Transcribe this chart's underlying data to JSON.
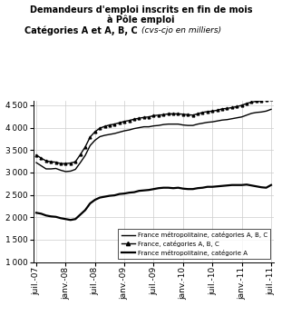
{
  "title_line1": "Demandeurs d'emploi inscrits en fin de mois",
  "title_line2": "à Pôle emploi",
  "title_line3_bold": "Catégories A et A, B, C",
  "title_line3_italic": "(cvs-cjo en milliers)",
  "x_labels": [
    "juil.-07",
    "janv.-08",
    "juil.-08",
    "janv.-09",
    "juil.-09",
    "janv.-10",
    "juil.-10",
    "janv.-11",
    "juil.-11"
  ],
  "xtick_positions": [
    0,
    6,
    12,
    18,
    24,
    30,
    36,
    42,
    48
  ],
  "ylim": [
    1000,
    4600
  ],
  "yticks": [
    1000,
    1500,
    2000,
    2500,
    3000,
    3500,
    4000,
    4500
  ],
  "series": {
    "france_metro_ABC": {
      "label": "France métropolitaine, catégories A, B, C",
      "color": "#000000",
      "linewidth": 1.0,
      "marker": null,
      "markersize": null,
      "values": [
        3220,
        3150,
        3080,
        3080,
        3090,
        3050,
        3020,
        3030,
        3070,
        3220,
        3380,
        3600,
        3720,
        3800,
        3830,
        3850,
        3870,
        3900,
        3930,
        3950,
        3980,
        4000,
        4020,
        4020,
        4040,
        4050,
        4070,
        4080,
        4080,
        4080,
        4060,
        4050,
        4050,
        4080,
        4100,
        4120,
        4130,
        4150,
        4170,
        4180,
        4200,
        4220,
        4240,
        4280,
        4320,
        4340,
        4350,
        4370,
        4410
      ]
    },
    "france_ABC": {
      "label": "France, catégories A, B, C",
      "color": "#000000",
      "linewidth": 1.0,
      "marker": "^",
      "markersize": 2.0,
      "values": [
        3390,
        3320,
        3260,
        3240,
        3230,
        3200,
        3200,
        3210,
        3240,
        3400,
        3570,
        3790,
        3910,
        3990,
        4030,
        4060,
        4080,
        4110,
        4140,
        4160,
        4190,
        4210,
        4230,
        4240,
        4270,
        4280,
        4290,
        4310,
        4310,
        4310,
        4300,
        4290,
        4280,
        4310,
        4340,
        4360,
        4370,
        4390,
        4420,
        4430,
        4450,
        4470,
        4500,
        4540,
        4570,
        4590,
        4600,
        4620,
        4650
      ]
    },
    "france_metro_A": {
      "label": "France métropolitaine, catégorie A",
      "color": "#000000",
      "linewidth": 1.6,
      "marker": null,
      "markersize": null,
      "values": [
        2100,
        2080,
        2040,
        2020,
        2010,
        1980,
        1960,
        1940,
        1960,
        2060,
        2160,
        2310,
        2390,
        2440,
        2460,
        2480,
        2490,
        2520,
        2530,
        2550,
        2560,
        2590,
        2600,
        2610,
        2630,
        2650,
        2660,
        2660,
        2650,
        2660,
        2640,
        2630,
        2630,
        2650,
        2660,
        2680,
        2680,
        2690,
        2700,
        2710,
        2720,
        2720,
        2720,
        2730,
        2710,
        2690,
        2670,
        2660,
        2720
      ]
    }
  },
  "n_points": 49,
  "background_color": "#ffffff",
  "grid_color": "#cccccc",
  "legend_fontsize": 5.0,
  "tick_fontsize": 6.5,
  "title_fontsize": 7.0,
  "subtitle_fontsize": 7.0
}
